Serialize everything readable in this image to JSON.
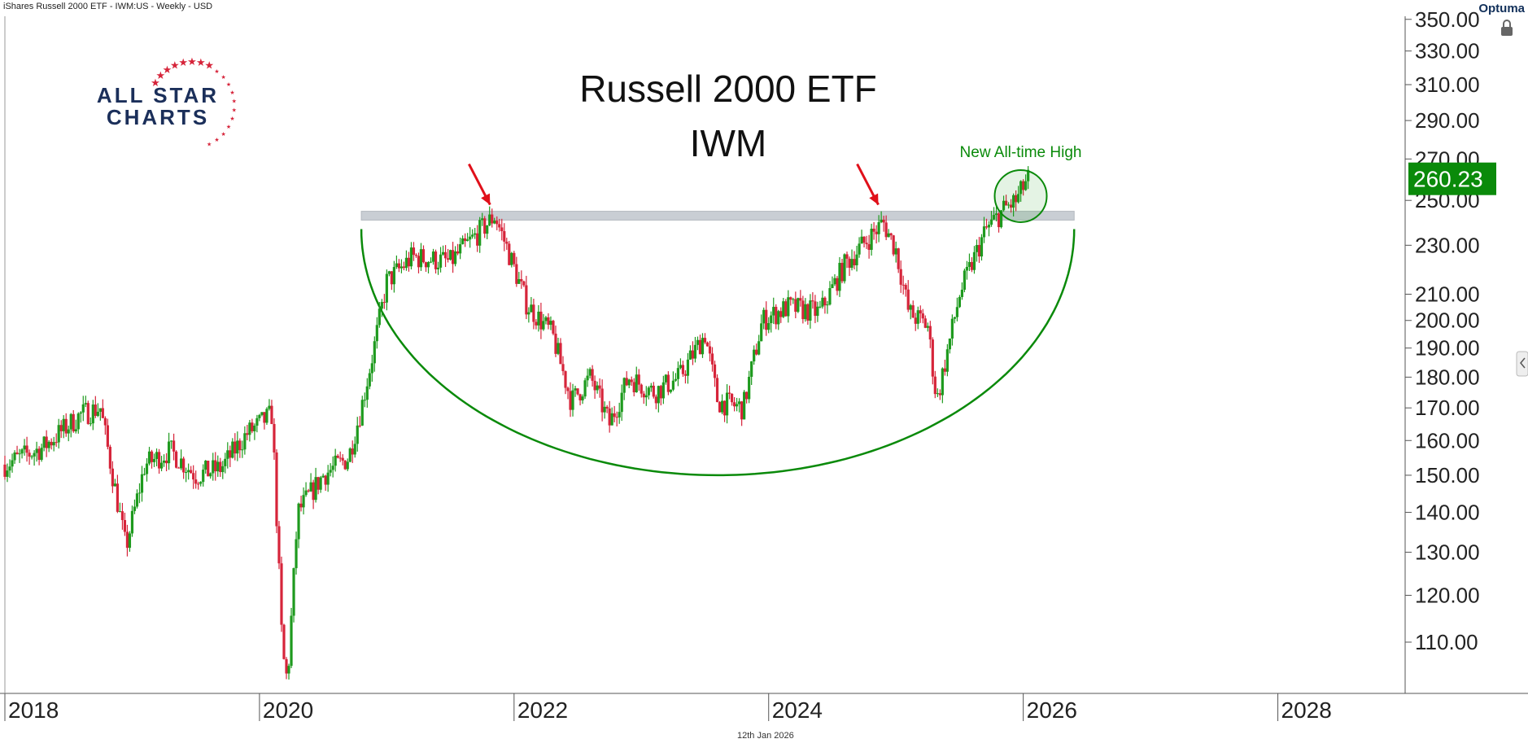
{
  "header": {
    "instrument": "iShares Russell 2000 ETF - IWM:US - Weekly - USD",
    "brand": "Optuma",
    "date_footer": "12th Jan 2026"
  },
  "logo": {
    "line1": "ALL STAR",
    "line2": "CHARTS"
  },
  "colors": {
    "up": "#1e9a1e",
    "down": "#d6243a",
    "arc": "#0a8a0a",
    "resistance_band": "#c9ced4",
    "arrow": "#e0101a",
    "price_tag": "#0a8a0a"
  },
  "chart_data": {
    "type": "candlestick",
    "title": "Russell 2000 ETF",
    "subtitle": "IWM",
    "scale": "log",
    "ylim": [
      100,
      352
    ],
    "xlim": [
      2018.0,
      2029.0
    ],
    "y_ticks": [
      "350.00",
      "330.00",
      "310.00",
      "290.00",
      "270.00",
      "250.00",
      "230.00",
      "210.00",
      "200.00",
      "190.00",
      "180.00",
      "170.00",
      "160.00",
      "150.00",
      "140.00",
      "130.00",
      "120.00",
      "110.00"
    ],
    "y_tick_values": [
      350,
      330,
      310,
      290,
      270,
      250,
      230,
      210,
      200,
      190,
      180,
      170,
      160,
      150,
      140,
      130,
      120,
      110
    ],
    "x_ticks": [
      "2018",
      "2020",
      "2022",
      "2024",
      "2026",
      "2028"
    ],
    "x_tick_values": [
      2018,
      2020,
      2022,
      2024,
      2026,
      2028
    ],
    "last_price": "260.23",
    "last_price_value": 260.23,
    "annotations": {
      "ath_label": "New All-time High",
      "resistance_band": {
        "from": 241,
        "to": 245,
        "x_start": 2020.8,
        "x_end": 2026.4
      },
      "arrows_at": [
        2021.85,
        2024.9
      ],
      "rounding_bottom": {
        "x_left": 2020.8,
        "x_right": 2026.4,
        "top_y": 237,
        "bottom_y": 150
      },
      "ath_circle": {
        "x": 2025.98,
        "y": 252
      }
    },
    "series_anchors": {
      "name": "IWM weekly close (approximate path)",
      "x": [
        2018.0,
        2018.3,
        2018.6,
        2018.75,
        2018.95,
        2019.1,
        2019.3,
        2019.5,
        2019.7,
        2019.9,
        2020.1,
        2020.18,
        2020.22,
        2020.3,
        2020.5,
        2020.7,
        2020.8,
        2020.9,
        2021.0,
        2021.2,
        2021.5,
        2021.85,
        2021.95,
        2022.1,
        2022.3,
        2022.45,
        2022.6,
        2022.75,
        2022.9,
        2023.1,
        2023.3,
        2023.5,
        2023.6,
        2023.8,
        2023.95,
        2024.15,
        2024.4,
        2024.6,
        2024.9,
        2025.0,
        2025.1,
        2025.25,
        2025.32,
        2025.5,
        2025.7,
        2025.85,
        2025.95,
        2026.03
      ],
      "y": [
        153,
        158,
        168,
        170,
        131,
        153,
        157,
        150,
        152,
        162,
        168,
        108,
        102,
        140,
        150,
        155,
        170,
        190,
        215,
        225,
        223,
        243,
        228,
        206,
        195,
        172,
        180,
        165,
        180,
        175,
        180,
        195,
        172,
        170,
        200,
        205,
        203,
        222,
        240,
        228,
        203,
        198,
        172,
        210,
        236,
        246,
        250,
        260
      ]
    }
  }
}
